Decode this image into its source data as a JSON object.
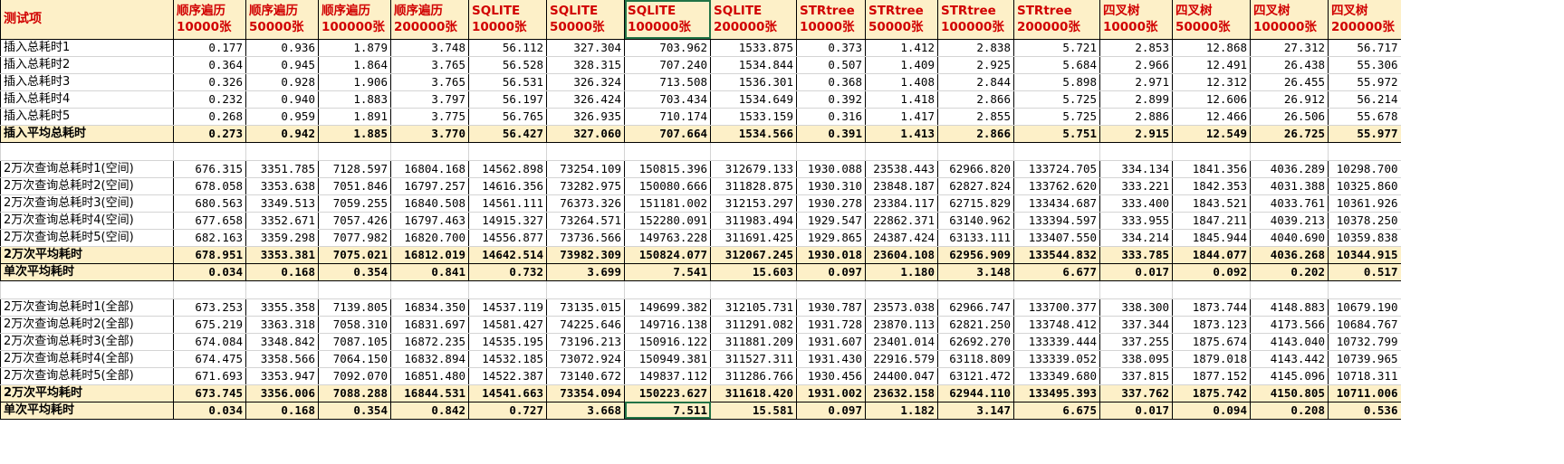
{
  "sheet": {
    "columns": [
      {
        "label": "测试项"
      },
      {
        "label": "顺序遍历\n10000张"
      },
      {
        "label": "顺序遍历\n50000张"
      },
      {
        "label": "顺序遍历\n100000张"
      },
      {
        "label": "顺序遍历\n200000张"
      },
      {
        "label": "SQLITE\n10000张"
      },
      {
        "label": "SQLITE\n50000张"
      },
      {
        "label": "SQLITE\n100000张"
      },
      {
        "label": "SQLITE\n200000张"
      },
      {
        "label": "STRtree\n10000张"
      },
      {
        "label": "STRtree\n50000张"
      },
      {
        "label": "STRtree\n100000张"
      },
      {
        "label": "STRtree\n200000张"
      },
      {
        "label": "四叉树\n10000张"
      },
      {
        "label": "四叉树\n50000张"
      },
      {
        "label": "四叉树\n100000张"
      },
      {
        "label": "四叉树\n200000张"
      }
    ],
    "rows": [
      {
        "type": "data",
        "cells": [
          "插入总耗时1",
          "0.177",
          "0.936",
          "1.879",
          "3.748",
          "56.112",
          "327.304",
          "703.962",
          "1533.875",
          "0.373",
          "1.412",
          "2.838",
          "5.721",
          "2.853",
          "12.868",
          "27.312",
          "56.717"
        ]
      },
      {
        "type": "data",
        "cells": [
          "插入总耗时2",
          "0.364",
          "0.945",
          "1.864",
          "3.765",
          "56.528",
          "328.315",
          "707.240",
          "1534.844",
          "0.507",
          "1.409",
          "2.925",
          "5.684",
          "2.966",
          "12.491",
          "26.438",
          "55.306"
        ]
      },
      {
        "type": "data",
        "cells": [
          "插入总耗时3",
          "0.326",
          "0.928",
          "1.906",
          "3.765",
          "56.531",
          "326.324",
          "713.508",
          "1536.301",
          "0.368",
          "1.408",
          "2.844",
          "5.898",
          "2.971",
          "12.312",
          "26.455",
          "55.972"
        ]
      },
      {
        "type": "data",
        "cells": [
          "插入总耗时4",
          "0.232",
          "0.940",
          "1.883",
          "3.797",
          "56.197",
          "326.424",
          "703.434",
          "1534.649",
          "0.392",
          "1.418",
          "2.866",
          "5.725",
          "2.899",
          "12.606",
          "26.912",
          "56.214"
        ]
      },
      {
        "type": "data",
        "cells": [
          "插入总耗时5",
          "0.268",
          "0.959",
          "1.891",
          "3.775",
          "56.765",
          "326.935",
          "710.174",
          "1533.159",
          "0.316",
          "1.417",
          "2.855",
          "5.725",
          "2.886",
          "12.466",
          "26.506",
          "55.678"
        ]
      },
      {
        "type": "avg",
        "cells": [
          "插入平均总耗时",
          "0.273",
          "0.942",
          "1.885",
          "3.770",
          "56.427",
          "327.060",
          "707.664",
          "1534.566",
          "0.391",
          "1.413",
          "2.866",
          "5.751",
          "2.915",
          "12.549",
          "26.725",
          "55.977"
        ]
      },
      {
        "type": "blank",
        "cells": [
          "",
          "",
          "",
          "",
          "",
          "",
          "",
          "",
          "",
          "",
          "",
          "",
          "",
          "",
          "",
          "",
          ""
        ]
      },
      {
        "type": "data",
        "cells": [
          "2万次查询总耗时1(空间)",
          "676.315",
          "3351.785",
          "7128.597",
          "16804.168",
          "14562.898",
          "73254.109",
          "150815.396",
          "312679.133",
          "1930.088",
          "23538.443",
          "62966.820",
          "133724.705",
          "334.134",
          "1841.356",
          "4036.289",
          "10298.700"
        ]
      },
      {
        "type": "data",
        "cells": [
          "2万次查询总耗时2(空间)",
          "678.058",
          "3353.638",
          "7051.846",
          "16797.257",
          "14616.356",
          "73282.975",
          "150080.666",
          "311828.875",
          "1930.310",
          "23848.187",
          "62827.824",
          "133762.620",
          "333.221",
          "1842.353",
          "4031.388",
          "10325.860"
        ]
      },
      {
        "type": "data",
        "cells": [
          "2万次查询总耗时3(空间)",
          "680.563",
          "3349.513",
          "7059.255",
          "16840.508",
          "14561.111",
          "76373.326",
          "151181.002",
          "312153.297",
          "1930.278",
          "23384.117",
          "62715.829",
          "133434.687",
          "333.400",
          "1843.521",
          "4033.761",
          "10361.926"
        ]
      },
      {
        "type": "data",
        "cells": [
          "2万次查询总耗时4(空间)",
          "677.658",
          "3352.671",
          "7057.426",
          "16797.463",
          "14915.327",
          "73264.571",
          "152280.091",
          "311983.494",
          "1929.547",
          "22862.371",
          "63140.962",
          "133394.597",
          "333.955",
          "1847.211",
          "4039.213",
          "10378.250"
        ]
      },
      {
        "type": "data",
        "cells": [
          "2万次查询总耗时5(空间)",
          "682.163",
          "3359.298",
          "7077.982",
          "16820.700",
          "14556.877",
          "73736.566",
          "149763.228",
          "311691.425",
          "1929.865",
          "24387.424",
          "63133.111",
          "133407.550",
          "334.214",
          "1845.944",
          "4040.690",
          "10359.838"
        ]
      },
      {
        "type": "avg",
        "cells": [
          "2万次平均耗时",
          "678.951",
          "3353.381",
          "7075.021",
          "16812.019",
          "14642.514",
          "73982.309",
          "150824.077",
          "312067.245",
          "1930.018",
          "23604.108",
          "62956.909",
          "133544.832",
          "333.785",
          "1844.077",
          "4036.268",
          "10344.915"
        ]
      },
      {
        "type": "avg",
        "cells": [
          "单次平均耗时",
          "0.034",
          "0.168",
          "0.354",
          "0.841",
          "0.732",
          "3.699",
          "7.541",
          "15.603",
          "0.097",
          "1.180",
          "3.148",
          "6.677",
          "0.017",
          "0.092",
          "0.202",
          "0.517"
        ]
      },
      {
        "type": "blank",
        "cells": [
          "",
          "",
          "",
          "",
          "",
          "",
          "",
          "",
          "",
          "",
          "",
          "",
          "",
          "",
          "",
          "",
          ""
        ]
      },
      {
        "type": "data",
        "cells": [
          "2万次查询总耗时1(全部)",
          "673.253",
          "3355.358",
          "7139.805",
          "16834.350",
          "14537.119",
          "73135.015",
          "149699.382",
          "312105.731",
          "1930.787",
          "23573.038",
          "62966.747",
          "133700.377",
          "338.300",
          "1873.744",
          "4148.883",
          "10679.190"
        ]
      },
      {
        "type": "data",
        "cells": [
          "2万次查询总耗时2(全部)",
          "675.219",
          "3363.318",
          "7058.310",
          "16831.697",
          "14581.427",
          "74225.646",
          "149716.138",
          "311291.082",
          "1931.728",
          "23870.113",
          "62821.250",
          "133748.412",
          "337.344",
          "1873.123",
          "4173.566",
          "10684.767"
        ]
      },
      {
        "type": "data",
        "cells": [
          "2万次查询总耗时3(全部)",
          "674.084",
          "3348.842",
          "7087.105",
          "16872.235",
          "14535.195",
          "73196.213",
          "150916.122",
          "311881.209",
          "1931.607",
          "23401.014",
          "62692.270",
          "133339.444",
          "337.255",
          "1875.674",
          "4143.040",
          "10732.799"
        ]
      },
      {
        "type": "data",
        "cells": [
          "2万次查询总耗时4(全部)",
          "674.475",
          "3358.566",
          "7064.150",
          "16832.894",
          "14532.185",
          "73072.924",
          "150949.381",
          "311527.311",
          "1931.430",
          "22916.579",
          "63118.809",
          "133339.052",
          "338.095",
          "1879.018",
          "4143.442",
          "10739.965"
        ]
      },
      {
        "type": "data",
        "cells": [
          "2万次查询总耗时5(全部)",
          "671.693",
          "3353.947",
          "7092.070",
          "16851.480",
          "14522.387",
          "73140.672",
          "149837.112",
          "311286.766",
          "1930.456",
          "24400.047",
          "63121.472",
          "133349.680",
          "337.815",
          "1877.152",
          "4145.096",
          "10718.311"
        ]
      },
      {
        "type": "avg",
        "cells": [
          "2万次平均耗时",
          "673.745",
          "3356.006",
          "7088.288",
          "16844.531",
          "14541.663",
          "73354.094",
          "150223.627",
          "311618.420",
          "1931.002",
          "23632.158",
          "62944.110",
          "133495.393",
          "337.762",
          "1875.742",
          "4150.805",
          "10711.006"
        ]
      },
      {
        "type": "avg",
        "cells": [
          "单次平均耗时",
          "0.034",
          "0.168",
          "0.354",
          "0.842",
          "0.727",
          "3.668",
          "7.511",
          "15.581",
          "0.097",
          "1.182",
          "3.147",
          "6.675",
          "0.017",
          "0.094",
          "0.208",
          "0.536"
        ]
      }
    ]
  }
}
